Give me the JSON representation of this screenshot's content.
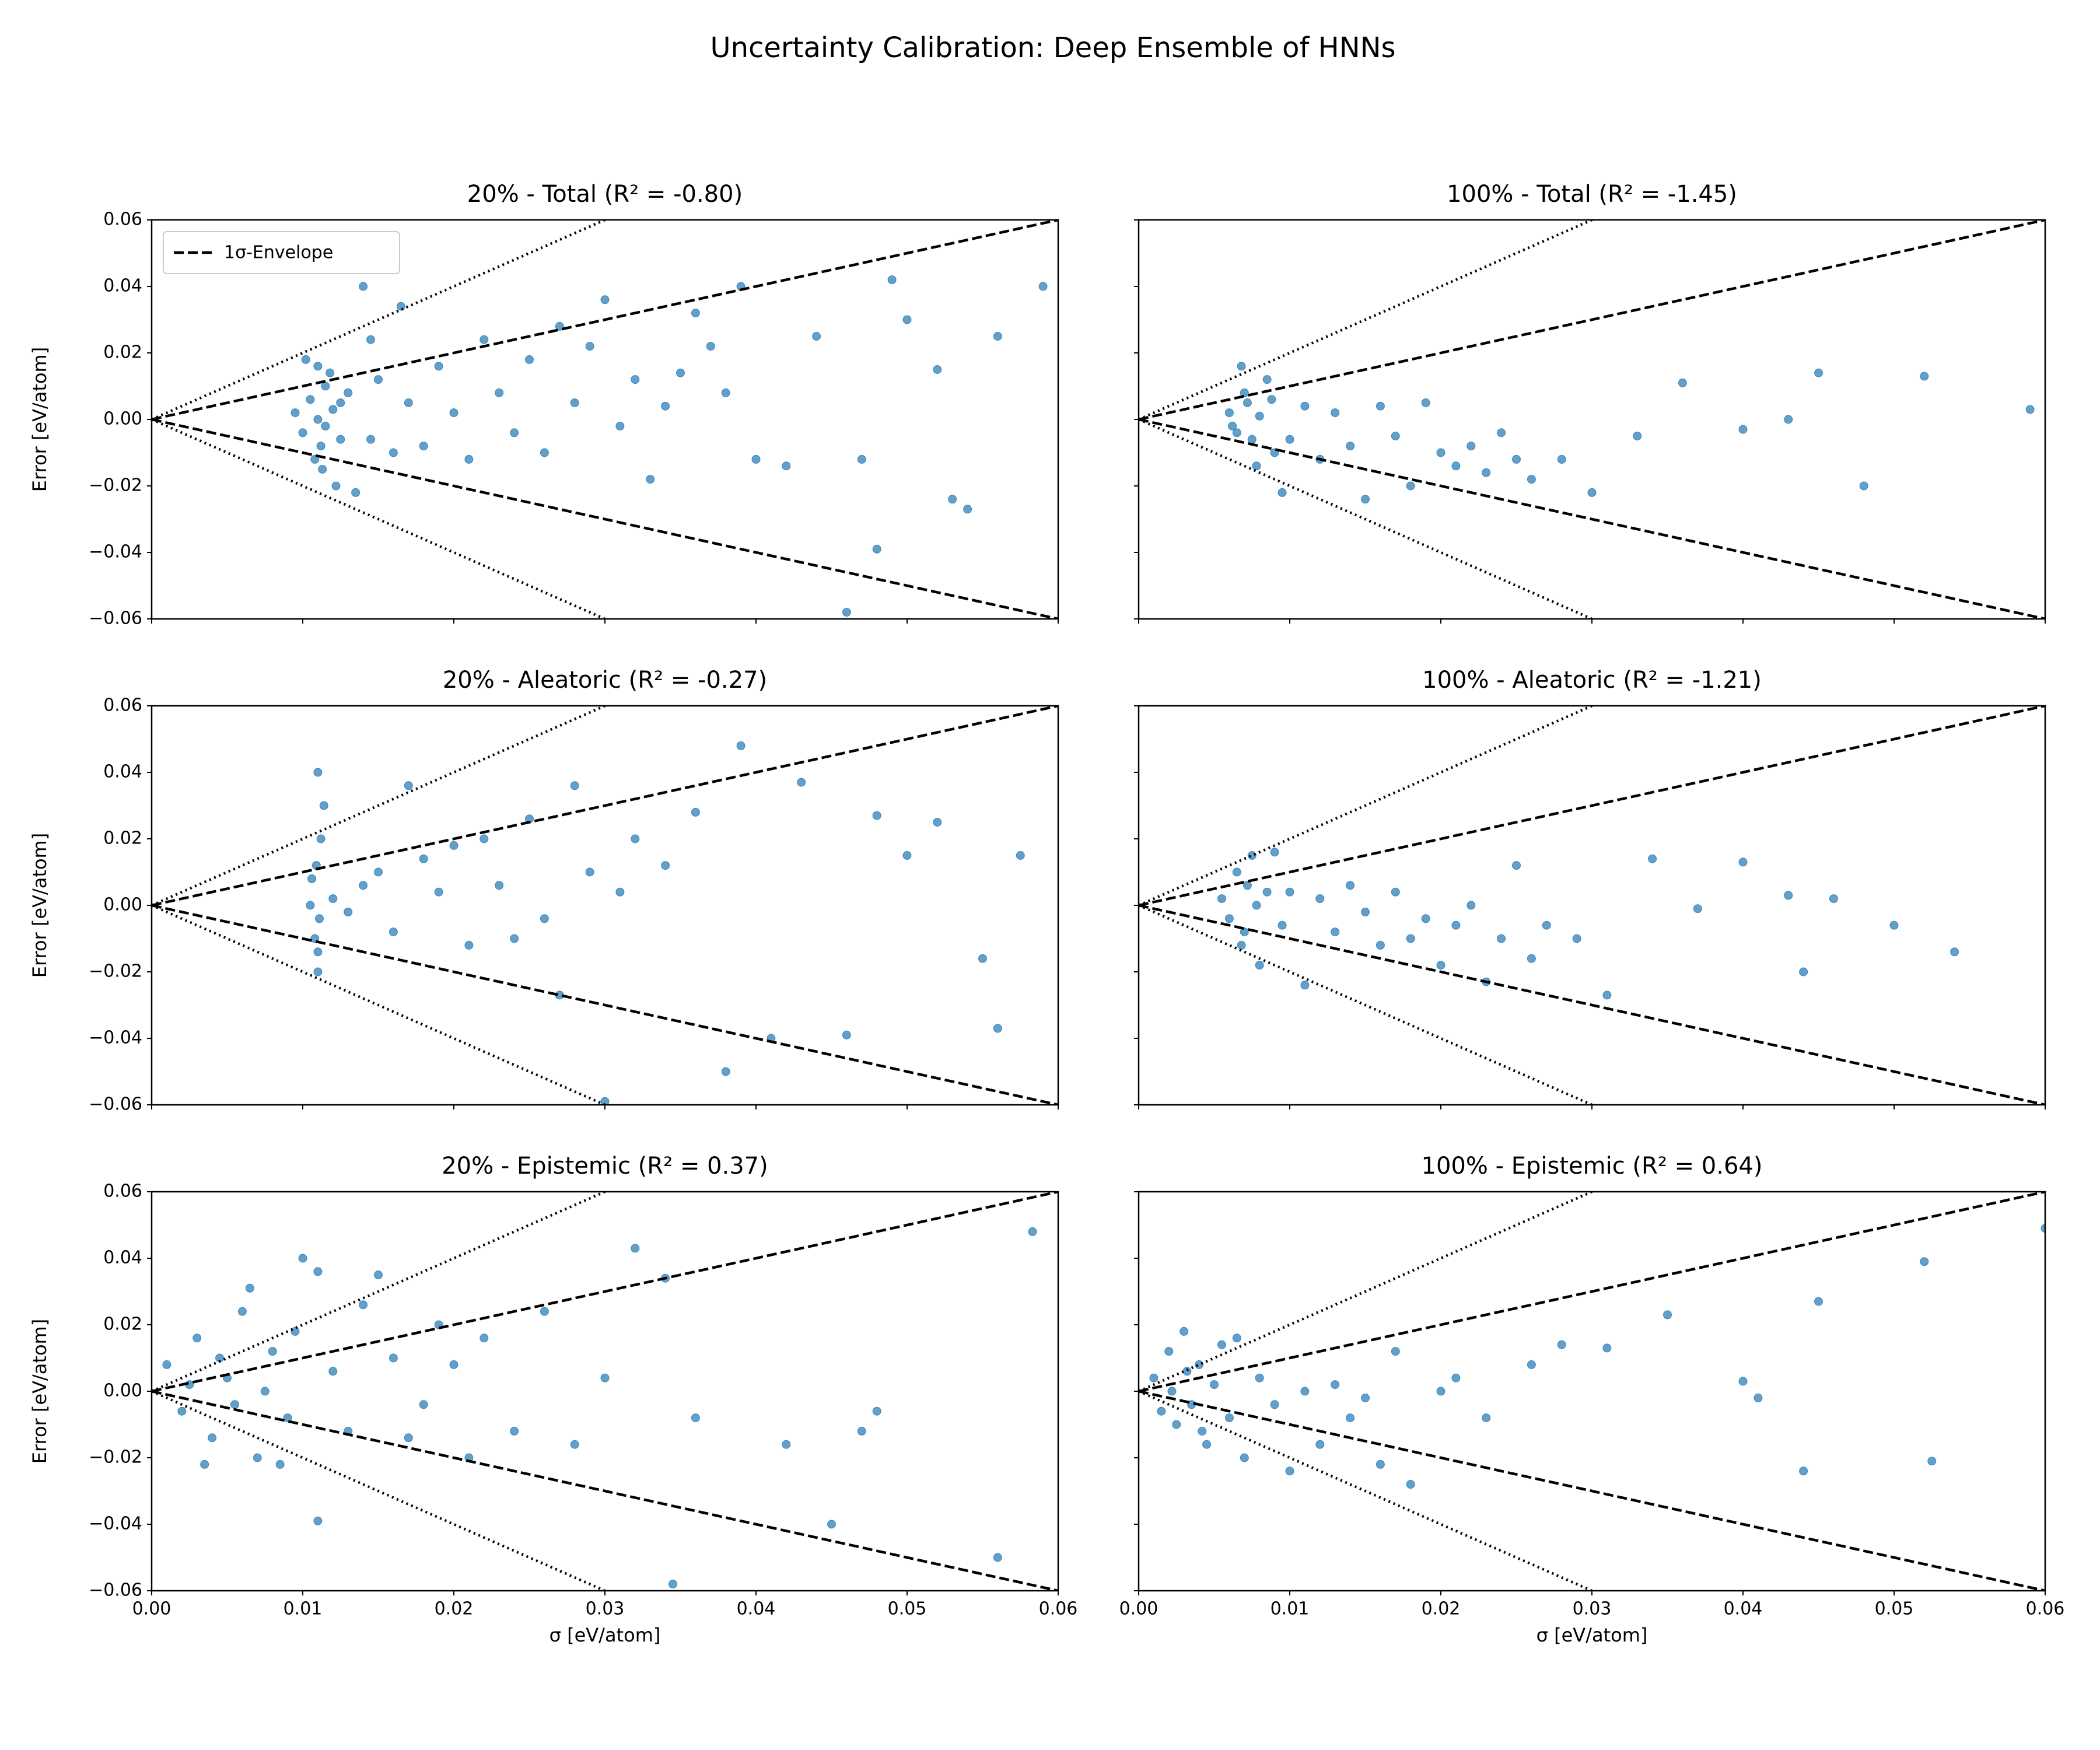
{
  "title": "Uncertainty Calibration: Deep Ensemble of HNNs",
  "shared_axes": {
    "xlabel": "σ [eV/atom]",
    "ylabel": "Error [eV/atom]",
    "xlim": [
      0,
      0.06
    ],
    "xticks": [
      {
        "value": 0,
        "label": "0.00"
      },
      0.01,
      0.02,
      0.03,
      0.04,
      0.05,
      0.06
    ],
    "ylim": [
      -0.06,
      0.06
    ],
    "yticks": [
      {
        "value": -0.06,
        "label": "−0.06"
      },
      {
        "value": -0.04,
        "label": "−0.04"
      },
      {
        "value": -0.02,
        "label": "−0.02"
      },
      {
        "value": 0,
        "label": "0.00"
      },
      0.02,
      0.04,
      0.06
    ],
    "lines": [
      {
        "style": "dashed",
        "color": "#000000",
        "x": [
          0,
          0.06
        ],
        "y": [
          0,
          0.06
        ]
      },
      {
        "style": "dashed",
        "color": "#000000",
        "x": [
          0,
          0.06
        ],
        "y": [
          0,
          -0.06
        ]
      },
      {
        "style": "dotted",
        "color": "#000000",
        "x": [
          0,
          0.03
        ],
        "y": [
          0,
          0.06
        ]
      },
      {
        "style": "dotted",
        "color": "#000000",
        "x": [
          0,
          0.03
        ],
        "y": [
          0,
          -0.06
        ]
      }
    ]
  },
  "chart_data": [
    {
      "type": "scatter",
      "title": "20% - Total (R² = -0.80)",
      "color": "#1f77b4",
      "legend": {
        "label": "1σ-Envelope",
        "loc": "upper left"
      },
      "x": [
        0.0095,
        0.01,
        0.0105,
        0.011,
        0.0112,
        0.0115,
        0.012,
        0.0125,
        0.013,
        0.0108,
        0.0118,
        0.0102,
        0.0113,
        0.0122,
        0.014,
        0.015,
        0.016,
        0.0145,
        0.017,
        0.018,
        0.019,
        0.02,
        0.021,
        0.022,
        0.023,
        0.024,
        0.025,
        0.026,
        0.027,
        0.028,
        0.029,
        0.03,
        0.031,
        0.032,
        0.033,
        0.034,
        0.035,
        0.036,
        0.037,
        0.038,
        0.039,
        0.04,
        0.042,
        0.044,
        0.046,
        0.047,
        0.048,
        0.049,
        0.05,
        0.052,
        0.053,
        0.054,
        0.056,
        0.059,
        0.0145,
        0.0115,
        0.0125,
        0.0165,
        0.0135,
        0.011
      ],
      "y": [
        0.002,
        -0.004,
        0.006,
        0.0,
        -0.008,
        0.01,
        0.003,
        -0.006,
        0.008,
        -0.012,
        0.014,
        0.018,
        -0.015,
        -0.02,
        0.04,
        0.012,
        -0.01,
        0.024,
        0.005,
        -0.008,
        0.016,
        0.002,
        -0.012,
        0.024,
        0.008,
        -0.004,
        0.018,
        -0.01,
        0.028,
        0.005,
        0.022,
        0.036,
        -0.002,
        0.012,
        -0.018,
        0.004,
        0.014,
        0.032,
        0.022,
        0.008,
        0.04,
        -0.012,
        -0.014,
        0.025,
        -0.058,
        -0.012,
        -0.039,
        0.042,
        0.03,
        0.015,
        -0.024,
        -0.027,
        0.025,
        0.04,
        -0.006,
        -0.002,
        0.005,
        0.034,
        -0.022,
        0.016
      ]
    },
    {
      "type": "scatter",
      "title": "100% - Total (R² = -1.45)",
      "color": "#1f77b4",
      "x": [
        0.006,
        0.0065,
        0.007,
        0.0075,
        0.008,
        0.0085,
        0.009,
        0.0068,
        0.0078,
        0.0072,
        0.0062,
        0.0088,
        0.0095,
        0.01,
        0.011,
        0.012,
        0.013,
        0.014,
        0.015,
        0.016,
        0.017,
        0.018,
        0.019,
        0.02,
        0.021,
        0.022,
        0.023,
        0.024,
        0.025,
        0.026,
        0.028,
        0.03,
        0.033,
        0.036,
        0.04,
        0.043,
        0.045,
        0.048,
        0.052,
        0.059
      ],
      "y": [
        0.002,
        -0.004,
        0.008,
        -0.006,
        0.001,
        0.012,
        -0.01,
        0.016,
        -0.014,
        0.005,
        -0.002,
        0.006,
        -0.022,
        -0.006,
        0.004,
        -0.012,
        0.002,
        -0.008,
        -0.024,
        0.004,
        -0.005,
        -0.02,
        0.005,
        -0.01,
        -0.014,
        -0.008,
        -0.016,
        -0.004,
        -0.012,
        -0.018,
        -0.012,
        -0.022,
        -0.005,
        0.011,
        -0.003,
        0.0,
        0.014,
        -0.02,
        0.013,
        0.003
      ]
    },
    {
      "type": "scatter",
      "title": "20% - Aleatoric (R² = -0.27)",
      "color": "#1f77b4",
      "x": [
        0.0105,
        0.011,
        0.0108,
        0.0112,
        0.011,
        0.0106,
        0.0114,
        0.011,
        0.0109,
        0.0111,
        0.012,
        0.013,
        0.014,
        0.015,
        0.016,
        0.017,
        0.018,
        0.019,
        0.02,
        0.021,
        0.022,
        0.023,
        0.024,
        0.025,
        0.026,
        0.027,
        0.028,
        0.029,
        0.03,
        0.031,
        0.032,
        0.034,
        0.036,
        0.038,
        0.039,
        0.041,
        0.043,
        0.046,
        0.048,
        0.05,
        0.052,
        0.055,
        0.056,
        0.0575
      ],
      "y": [
        0.0,
        0.04,
        -0.01,
        0.02,
        -0.02,
        0.008,
        0.03,
        -0.014,
        0.012,
        -0.004,
        0.002,
        -0.002,
        0.006,
        0.01,
        -0.008,
        0.036,
        0.014,
        0.004,
        0.018,
        -0.012,
        0.02,
        0.006,
        -0.01,
        0.026,
        -0.004,
        -0.027,
        0.036,
        0.01,
        -0.059,
        0.004,
        0.02,
        0.012,
        0.028,
        -0.05,
        0.048,
        -0.04,
        0.037,
        -0.039,
        0.027,
        0.015,
        0.025,
        -0.016,
        -0.037,
        0.015
      ]
    },
    {
      "type": "scatter",
      "title": "100% - Aleatoric (R² = -1.21)",
      "color": "#1f77b4",
      "x": [
        0.0055,
        0.006,
        0.0065,
        0.007,
        0.0075,
        0.008,
        0.0085,
        0.009,
        0.0068,
        0.0072,
        0.0078,
        0.0095,
        0.01,
        0.011,
        0.012,
        0.013,
        0.014,
        0.015,
        0.016,
        0.017,
        0.018,
        0.019,
        0.02,
        0.021,
        0.022,
        0.023,
        0.024,
        0.025,
        0.026,
        0.027,
        0.029,
        0.031,
        0.034,
        0.037,
        0.04,
        0.043,
        0.044,
        0.046,
        0.05,
        0.054
      ],
      "y": [
        0.002,
        -0.004,
        0.01,
        -0.008,
        0.015,
        -0.018,
        0.004,
        0.016,
        -0.012,
        0.006,
        0.0,
        -0.006,
        0.004,
        -0.024,
        0.002,
        -0.008,
        0.006,
        -0.002,
        -0.012,
        0.004,
        -0.01,
        -0.004,
        -0.018,
        -0.006,
        0.0,
        -0.023,
        -0.01,
        0.012,
        -0.016,
        -0.006,
        -0.01,
        -0.027,
        0.014,
        -0.001,
        0.013,
        0.003,
        -0.02,
        0.002,
        -0.006,
        -0.014
      ]
    },
    {
      "type": "scatter",
      "title": "20% - Epistemic (R² = 0.37)",
      "color": "#1f77b4",
      "x": [
        0.001,
        0.002,
        0.003,
        0.004,
        0.005,
        0.006,
        0.007,
        0.008,
        0.009,
        0.01,
        0.0025,
        0.0035,
        0.0045,
        0.0055,
        0.0065,
        0.0075,
        0.0085,
        0.0095,
        0.011,
        0.012,
        0.013,
        0.014,
        0.015,
        0.016,
        0.017,
        0.018,
        0.019,
        0.02,
        0.021,
        0.022,
        0.024,
        0.026,
        0.028,
        0.03,
        0.032,
        0.034,
        0.036,
        0.042,
        0.045,
        0.047,
        0.048,
        0.056,
        0.0583,
        0.011,
        0.0345
      ],
      "y": [
        0.008,
        -0.006,
        0.016,
        -0.014,
        0.004,
        0.024,
        -0.02,
        0.012,
        -0.008,
        0.04,
        0.002,
        -0.022,
        0.01,
        -0.004,
        0.031,
        0.0,
        -0.022,
        0.018,
        -0.039,
        0.006,
        -0.012,
        0.026,
        0.035,
        0.01,
        -0.014,
        -0.004,
        0.02,
        0.008,
        -0.02,
        0.016,
        -0.012,
        0.024,
        -0.016,
        0.004,
        0.043,
        0.034,
        -0.008,
        -0.016,
        -0.04,
        -0.012,
        -0.006,
        -0.05,
        0.048,
        0.036,
        -0.058
      ]
    },
    {
      "type": "scatter",
      "title": "100% - Epistemic (R² = 0.64)",
      "color": "#1f77b4",
      "x": [
        0.001,
        0.0015,
        0.002,
        0.0025,
        0.003,
        0.0035,
        0.004,
        0.0045,
        0.005,
        0.0055,
        0.006,
        0.0065,
        0.007,
        0.0022,
        0.0032,
        0.0042,
        0.008,
        0.009,
        0.01,
        0.011,
        0.012,
        0.013,
        0.014,
        0.015,
        0.016,
        0.017,
        0.018,
        0.02,
        0.021,
        0.023,
        0.026,
        0.028,
        0.031,
        0.035,
        0.04,
        0.041,
        0.044,
        0.045,
        0.052,
        0.0525,
        0.06
      ],
      "y": [
        0.004,
        -0.006,
        0.012,
        -0.01,
        0.018,
        -0.004,
        0.008,
        -0.016,
        0.002,
        0.014,
        -0.008,
        0.016,
        -0.02,
        0.0,
        0.006,
        -0.012,
        0.004,
        -0.004,
        -0.024,
        0.0,
        -0.016,
        0.002,
        -0.008,
        -0.002,
        -0.022,
        0.012,
        -0.028,
        0.0,
        0.004,
        -0.008,
        0.008,
        0.014,
        0.013,
        0.023,
        0.003,
        -0.002,
        -0.024,
        0.027,
        0.039,
        -0.021,
        0.049
      ]
    }
  ]
}
